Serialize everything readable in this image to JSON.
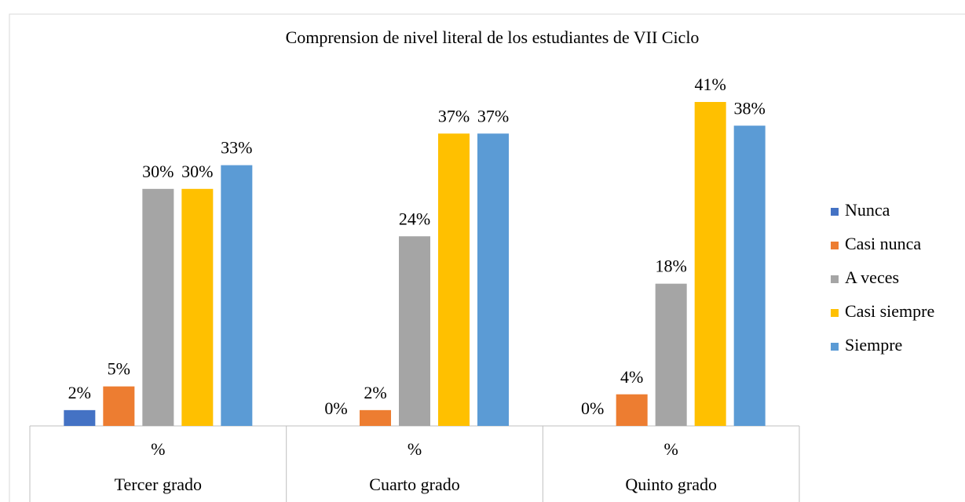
{
  "chart_data": {
    "type": "bar",
    "title": "Comprension de nivel literal  de los estudiantes de VII Ciclo",
    "categories": [
      "Tercer grado",
      "Cuarto grado",
      "Quinto grado"
    ],
    "category_sublabels": [
      "%",
      "%",
      "%"
    ],
    "series": [
      {
        "name": "Nunca",
        "color": "#4472c4",
        "values": [
          2,
          0,
          0
        ],
        "value_labels": [
          "2%",
          "0%",
          "0%"
        ]
      },
      {
        "name": "Casi nunca",
        "color": "#ed7d31",
        "values": [
          5,
          2,
          4
        ],
        "value_labels": [
          "5%",
          "2%",
          "4%"
        ]
      },
      {
        "name": "A veces",
        "color": "#a5a5a5",
        "values": [
          30,
          24,
          18
        ],
        "value_labels": [
          "30%",
          "24%",
          "18%"
        ]
      },
      {
        "name": "Casi siempre",
        "color": "#ffc000",
        "values": [
          30,
          37,
          41
        ],
        "value_labels": [
          "30%",
          "37%",
          "41%"
        ]
      },
      {
        "name": "Siempre",
        "color": "#5b9bd5",
        "values": [
          33,
          37,
          38
        ],
        "value_labels": [
          "33%",
          "37%",
          "38%"
        ]
      }
    ],
    "legend": "right"
  }
}
